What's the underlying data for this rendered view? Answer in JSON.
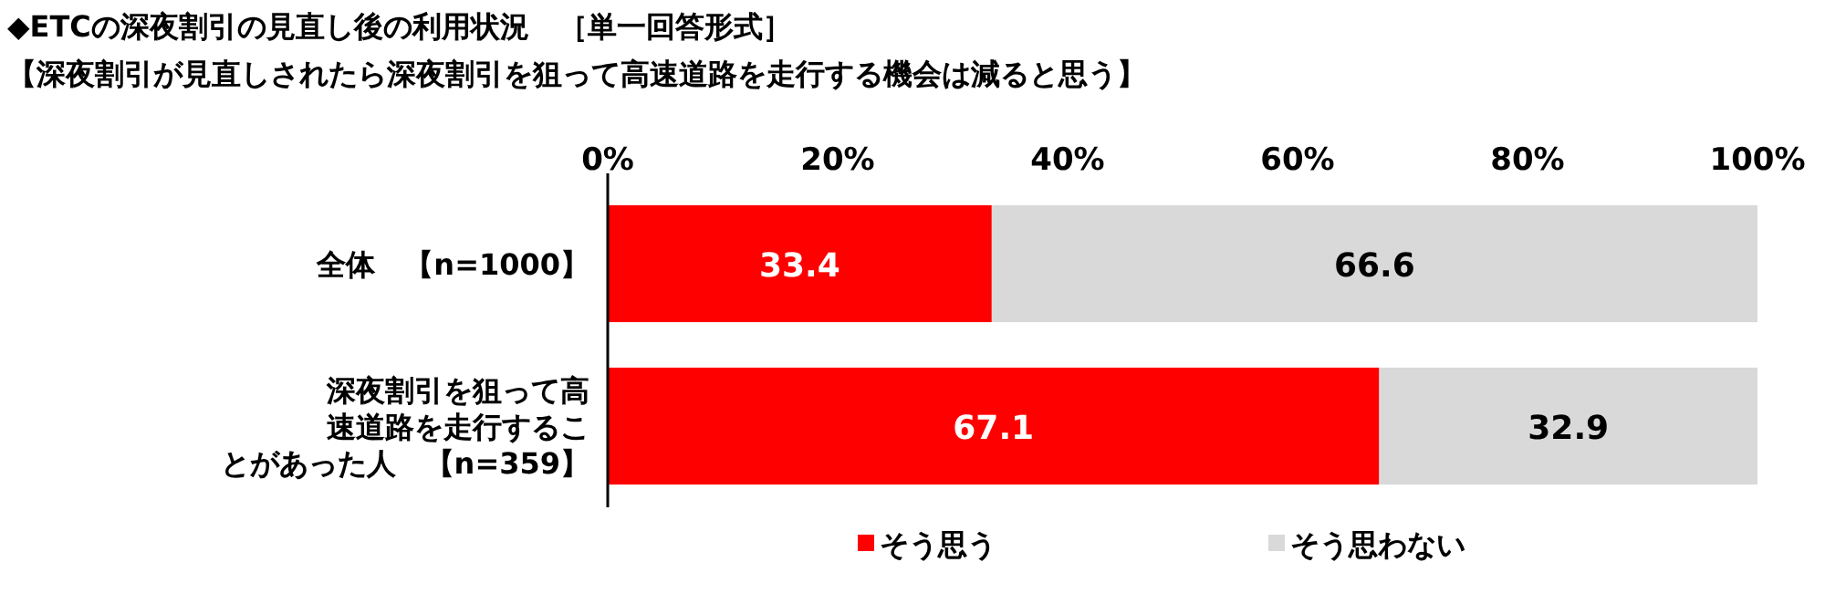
{
  "chart_data": {
    "type": "bar",
    "orientation": "horizontal",
    "stacked": true,
    "title": "◆ETCの深夜割引の見直し後の利用状況　［単一回答形式］",
    "subtitle": "【深夜割引が見直しされたら深夜割引を狙って高速道路を走行する機会は減ると思う】",
    "categories": [
      "全体　【n=1000】",
      "深夜割引を狙って高速道路を走行することがあった人　【n=359】"
    ],
    "series": [
      {
        "name": "そう思う",
        "color": "#ff0000",
        "values": [
          33.4,
          67.1
        ]
      },
      {
        "name": "そう思わない",
        "color": "#d9d9d9",
        "values": [
          66.6,
          32.9
        ]
      }
    ],
    "xlim": [
      0,
      100
    ],
    "xticks": [
      {
        "value": 0,
        "label": "0%"
      },
      {
        "value": 20,
        "label": "20%"
      },
      {
        "value": 40,
        "label": "40%"
      },
      {
        "value": 60,
        "label": "60%"
      },
      {
        "value": 80,
        "label": "80%"
      },
      {
        "value": 100,
        "label": "100%"
      }
    ],
    "data_labels": true,
    "legend": "bottom"
  }
}
